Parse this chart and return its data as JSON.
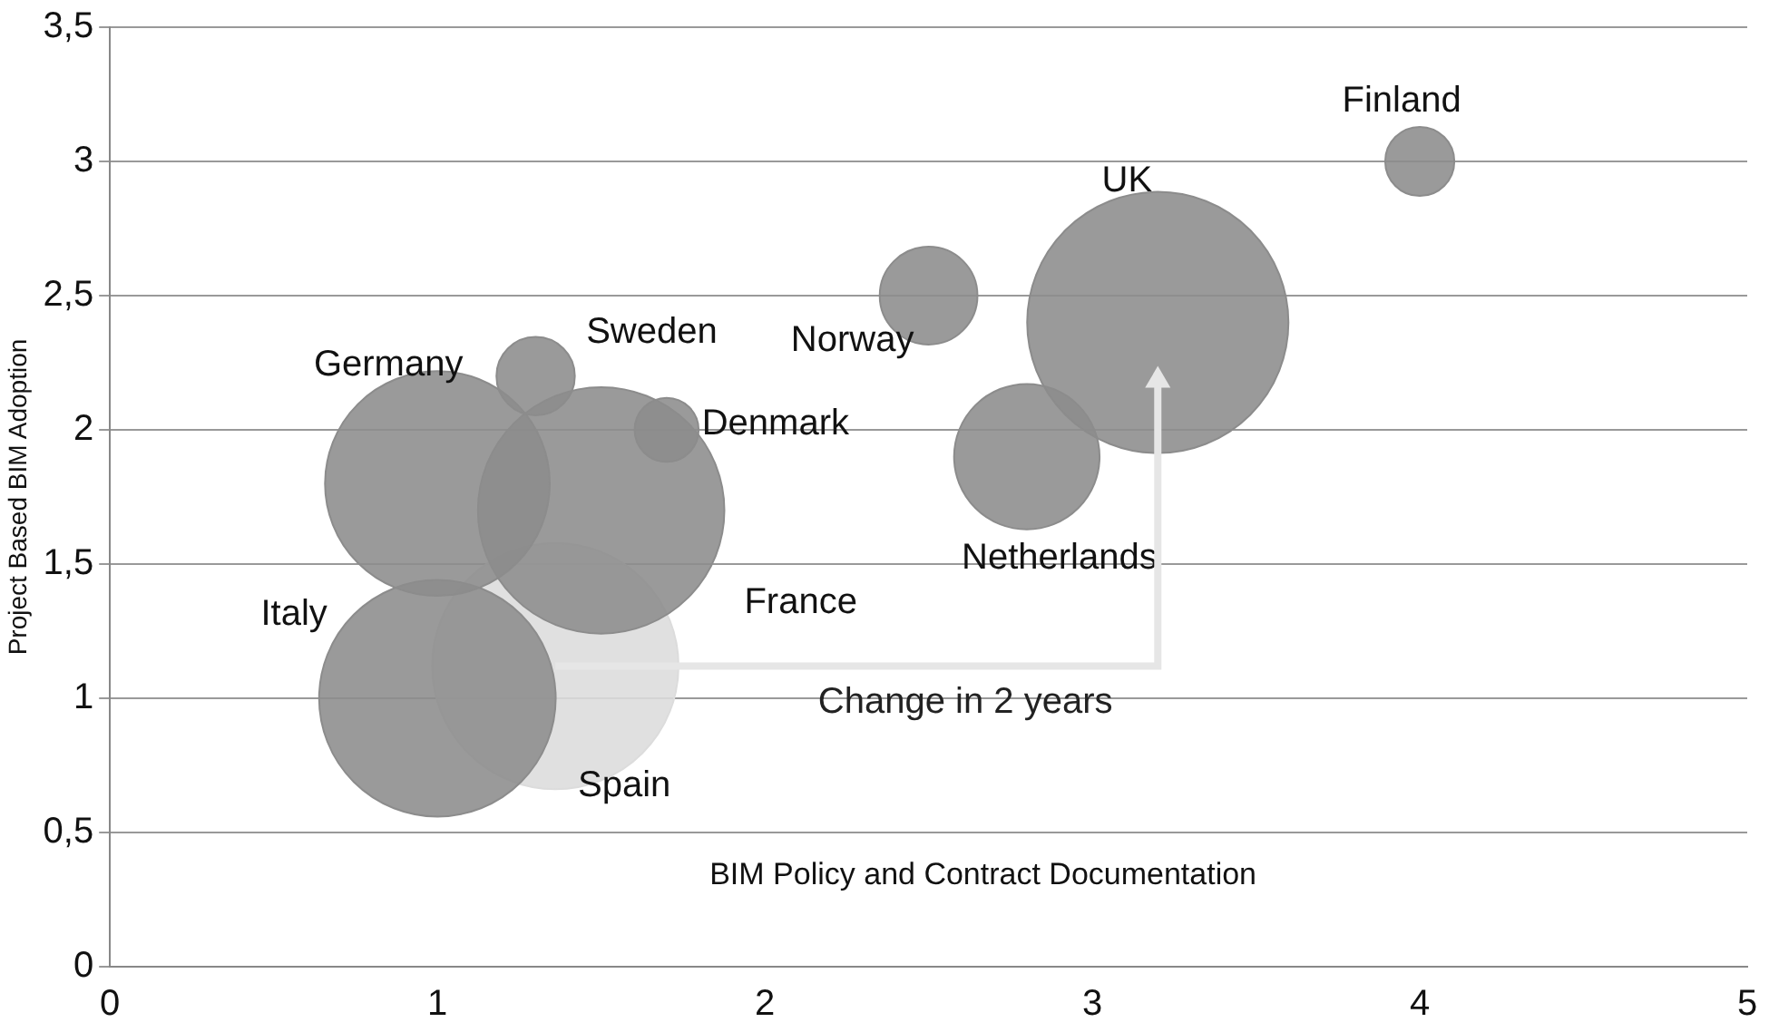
{
  "chart_data": {
    "type": "bubble",
    "xlabel": "BIM Policy and Contract Documentation",
    "ylabel": "Project Based BIM Adoption",
    "series": [
      {
        "name": "Finland",
        "color": "#8c8c8c",
        "x": [
          4
        ],
        "values": [
          3
        ],
        "sizes": [
          0.07
        ]
      },
      {
        "name": "UK",
        "color": "#8c8c8c",
        "x": [
          3.2
        ],
        "values": [
          2.4
        ],
        "sizes": [
          1
        ]
      },
      {
        "name": "Norway",
        "color": "#8c8c8c",
        "x": [
          2.5
        ],
        "values": [
          2.5
        ],
        "sizes": [
          0.14
        ]
      },
      {
        "name": "Netherlands",
        "color": "#8c8c8c",
        "x": [
          2.8
        ],
        "values": [
          1.9
        ],
        "sizes": [
          0.31
        ]
      },
      {
        "name": "Sweden",
        "color": "#8c8c8c",
        "x": [
          1.3
        ],
        "values": [
          2.2
        ],
        "sizes": [
          0.09
        ]
      },
      {
        "name": "Denmark",
        "color": "#8c8c8c",
        "x": [
          1.7
        ],
        "values": [
          2.0
        ],
        "sizes": [
          0.06
        ]
      },
      {
        "name": "Germany",
        "color": "#8c8c8c",
        "x": [
          1.0
        ],
        "values": [
          1.8
        ],
        "sizes": [
          0.74
        ]
      },
      {
        "name": "France",
        "color": "#8c8c8c",
        "x": [
          1.5
        ],
        "values": [
          1.7
        ],
        "sizes": [
          0.89
        ]
      },
      {
        "name": "Italy",
        "color": "#8c8c8c",
        "x": [
          1.0
        ],
        "values": [
          1.0
        ],
        "sizes": [
          0.82
        ]
      },
      {
        "name": "Spain",
        "color": "#dcdcdc",
        "x": [
          1.36
        ],
        "values": [
          1.12
        ],
        "sizes": [
          0.89
        ]
      }
    ],
    "annotations": [
      "Change in 2 years"
    ],
    "xlim": [
      0,
      5
    ],
    "xticks": [
      0,
      1,
      2,
      3,
      4,
      5
    ],
    "ylim": [
      0,
      3.5
    ],
    "yticks": [
      0,
      {
        "value": 0.5,
        "label": "0,5"
      },
      1,
      {
        "value": 1.5,
        "label": "1,5"
      },
      2,
      {
        "value": 2.5,
        "label": "2,5"
      },
      3,
      {
        "value": 3.5,
        "label": "3,5"
      }
    ],
    "grid": "y",
    "legend": false
  }
}
